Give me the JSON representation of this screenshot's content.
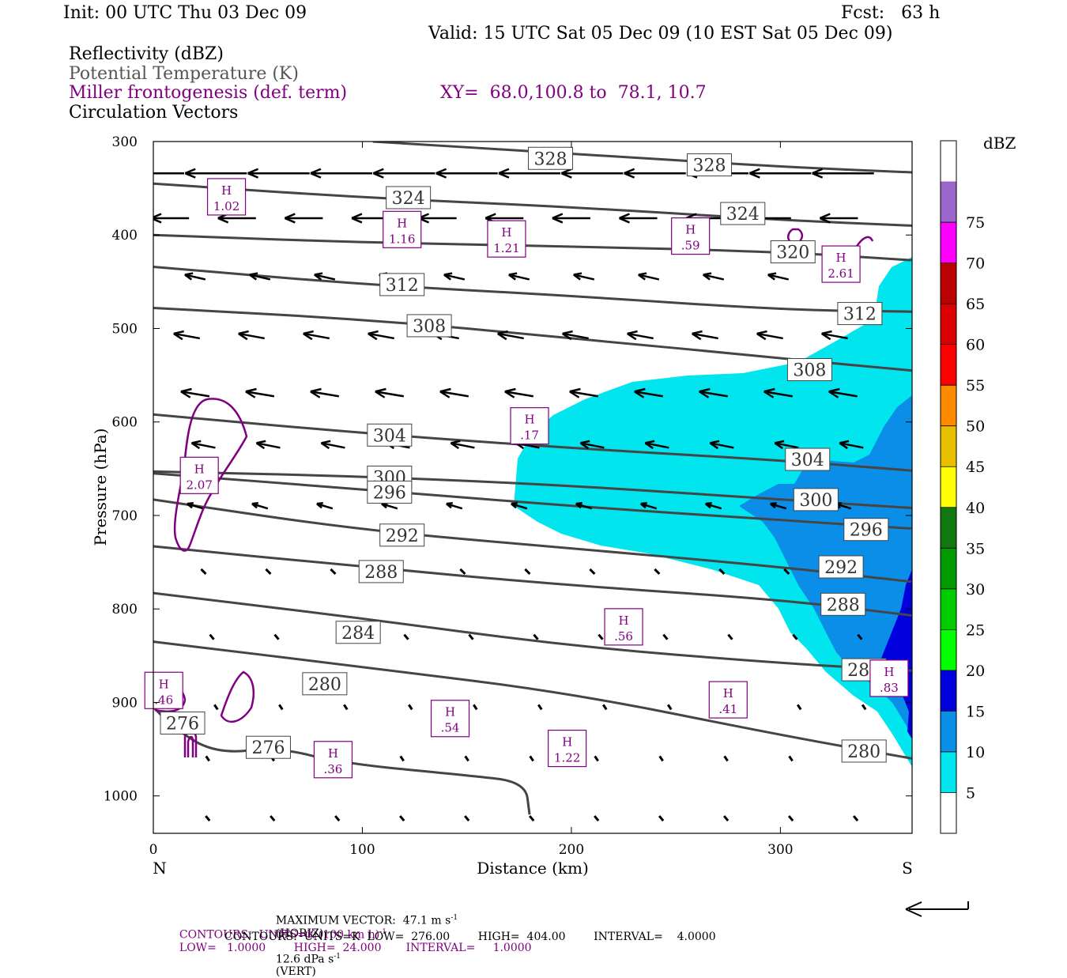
{
  "header": {
    "init": "Init: 00 UTC Thu 03 Dec 09",
    "fcst": "Fcst:   63 h",
    "valid": "Valid: 15 UTC Sat 05 Dec 09 (10 EST Sat 05 Dec 09)",
    "field1": "Reflectivity (dBZ)",
    "field2": "Potential Temperature (K)",
    "field3": "Miller frontogenesis (def. term)",
    "xy": "XY=  68.0,100.8 to  78.1, 10.7",
    "field4": "Circulation Vectors"
  },
  "footer": {
    "max_vector": "MAXIMUM VECTOR:  47.1 m s",
    "max_vector_exp": "-1",
    "horiz": "(HORIZ)",
    "vert_val": "12.6 dPa s",
    "vert_exp": "-1",
    "vert": "(VERT)",
    "contours1_a": "CONTOURS:  UNITS=K (100 km h)",
    "contours1_exp": "-1",
    "contours1_b": "LOW=   1.0000        HIGH=  24.000       INTERVAL=     1.0000",
    "contours2": "CONTOURS:  UNITS=K  LOW=  276.00        HIGH=  404.00        INTERVAL=    4.0000"
  },
  "colors": {
    "theta": "#454545",
    "frontogenesis": "#800080",
    "refl_5": "#00e5ee",
    "refl_10": "#0a8ee8",
    "refl_15": "#0000dd"
  },
  "chart_data": {
    "type": "cross-section",
    "xlabel": "Distance (km)",
    "ylabel": "Pressure (hPa)",
    "xlim": [
      0,
      363
    ],
    "ylim": [
      1040,
      300
    ],
    "x_ticks": [
      0,
      100,
      200,
      300
    ],
    "y_ticks": [
      300,
      400,
      500,
      600,
      700,
      800,
      900,
      1000
    ],
    "x_end_labels": {
      "left": "N",
      "right": "S"
    },
    "colorbar": {
      "unit": "dBZ",
      "levels": [
        5,
        10,
        15,
        20,
        25,
        30,
        35,
        40,
        45,
        50,
        55,
        60,
        65,
        70,
        75
      ],
      "colors": [
        "#ffffff",
        "#00e5ee",
        "#0a8ee8",
        "#0000dd",
        "#00ff00",
        "#00cc00",
        "#009900",
        "#117711",
        "#ffff00",
        "#e8c000",
        "#ff8c00",
        "#ff0000",
        "#dd0000",
        "#bb0000",
        "#ff00ff",
        "#9966cc",
        "#ffffff"
      ]
    },
    "theta_contours": [
      {
        "label": "328",
        "points": [
          [
            105,
            300
          ],
          [
            200,
            313
          ],
          [
            300,
            327
          ],
          [
            363,
            333
          ]
        ],
        "labels_at": [
          [
            190,
            318
          ],
          [
            266,
            325
          ]
        ]
      },
      {
        "label": "324",
        "points": [
          [
            0,
            345
          ],
          [
            100,
            360
          ],
          [
            200,
            370
          ],
          [
            300,
            384
          ],
          [
            363,
            390
          ]
        ],
        "labels_at": [
          [
            122,
            360
          ],
          [
            282,
            377
          ]
        ]
      },
      {
        "label": "320",
        "points": [
          [
            0,
            400
          ],
          [
            100,
            408
          ],
          [
            200,
            412
          ],
          [
            300,
            418
          ],
          [
            363,
            427
          ]
        ],
        "labels_at": [
          [
            306,
            418
          ]
        ]
      },
      {
        "label": "312",
        "points": [
          [
            0,
            434
          ],
          [
            100,
            453
          ],
          [
            200,
            465
          ],
          [
            300,
            480
          ],
          [
            363,
            482
          ]
        ],
        "labels_at": [
          [
            119,
            453
          ],
          [
            338,
            484
          ]
        ]
      },
      {
        "label": "308",
        "points": [
          [
            0,
            478
          ],
          [
            100,
            490
          ],
          [
            200,
            510
          ],
          [
            300,
            532
          ],
          [
            363,
            545
          ]
        ],
        "labels_at": [
          [
            132,
            497
          ],
          [
            314,
            544
          ]
        ]
      },
      {
        "label": "304",
        "points": [
          [
            0,
            592
          ],
          [
            100,
            612
          ],
          [
            200,
            628
          ],
          [
            300,
            641
          ],
          [
            363,
            652
          ]
        ],
        "labels_at": [
          [
            113,
            614
          ],
          [
            313,
            640
          ]
        ]
      },
      {
        "label": "300",
        "points": [
          [
            0,
            653
          ],
          [
            100,
            658
          ],
          [
            200,
            668
          ],
          [
            300,
            683
          ],
          [
            363,
            692
          ]
        ],
        "labels_at": [
          [
            113,
            659
          ],
          [
            317,
            683
          ]
        ]
      },
      {
        "label": "296",
        "points": [
          [
            0,
            655
          ],
          [
            100,
            672
          ],
          [
            200,
            690
          ],
          [
            300,
            705
          ],
          [
            363,
            714
          ]
        ],
        "labels_at": [
          [
            113,
            675
          ],
          [
            341,
            715
          ]
        ]
      },
      {
        "label": "292",
        "points": [
          [
            0,
            683
          ],
          [
            100,
            716
          ],
          [
            200,
            735
          ],
          [
            300,
            755
          ],
          [
            363,
            771
          ]
        ],
        "labels_at": [
          [
            119,
            721
          ],
          [
            329,
            755
          ]
        ]
      },
      {
        "label": "288",
        "points": [
          [
            0,
            733
          ],
          [
            100,
            755
          ],
          [
            200,
            775
          ],
          [
            300,
            790
          ],
          [
            363,
            807
          ]
        ],
        "labels_at": [
          [
            109,
            760
          ],
          [
            330,
            795
          ]
        ]
      },
      {
        "label": "284",
        "points": [
          [
            0,
            783
          ],
          [
            100,
            810
          ],
          [
            200,
            840
          ],
          [
            300,
            858
          ],
          [
            363,
            866
          ]
        ],
        "labels_at": [
          [
            98,
            825
          ],
          [
            340,
            865
          ]
        ]
      },
      {
        "label": "280",
        "points": [
          [
            0,
            835
          ],
          [
            100,
            862
          ],
          [
            200,
            890
          ],
          [
            300,
            935
          ],
          [
            363,
            960
          ]
        ],
        "labels_at": [
          [
            82,
            880
          ],
          [
            340,
            952
          ]
        ]
      },
      {
        "label": "276",
        "points": [
          [
            0,
            905
          ],
          [
            10,
            928
          ],
          [
            30,
            955
          ],
          [
            60,
            948
          ],
          [
            90,
            965
          ],
          [
            150,
            978
          ],
          [
            178,
            985
          ],
          [
            180,
            1020
          ]
        ],
        "labels_at": [
          [
            14,
            922
          ],
          [
            55,
            948
          ]
        ]
      }
    ],
    "frontogenesis_maxima": [
      {
        "label": "H",
        "value": "1.02",
        "x": 35,
        "p": 360
      },
      {
        "label": "H",
        "value": "1.16",
        "x": 119,
        "p": 395
      },
      {
        "label": "H",
        "value": "1.21",
        "x": 169,
        "p": 405
      },
      {
        "label": "H",
        "value": ".59",
        "x": 257,
        "p": 402
      },
      {
        "label": "H",
        "value": "2.61",
        "x": 329,
        "p": 432
      },
      {
        "label": "H",
        "value": ".17",
        "x": 180,
        "p": 605
      },
      {
        "label": "H",
        "value": "2.07",
        "x": 22,
        "p": 658
      },
      {
        "label": "H",
        "value": ".56",
        "x": 225,
        "p": 820
      },
      {
        "label": "H",
        "value": ".46",
        "x": 5,
        "p": 888
      },
      {
        "label": "H",
        "value": ".54",
        "x": 142,
        "p": 918
      },
      {
        "label": "H",
        "value": ".36",
        "x": 86,
        "p": 962
      },
      {
        "label": "H",
        "value": "1.22",
        "x": 198,
        "p": 950
      },
      {
        "label": "H",
        "value": ".41",
        "x": 275,
        "p": 898
      },
      {
        "label": "H",
        "value": ".83",
        "x": 352,
        "p": 875
      }
    ]
  }
}
